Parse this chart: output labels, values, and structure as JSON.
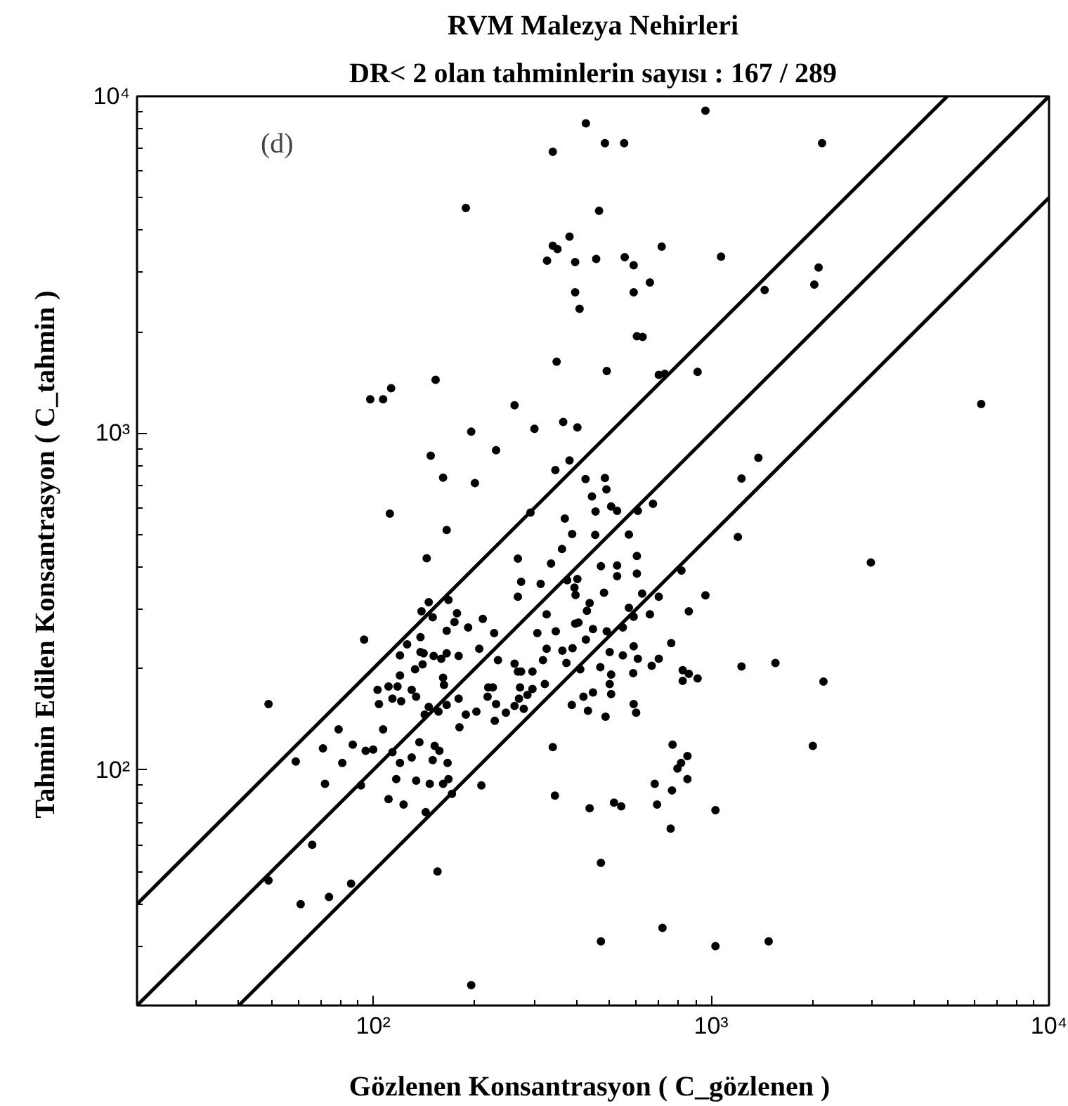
{
  "chart_data": {
    "type": "scatter",
    "title": "RVM Malezya Nehirleri",
    "subtitle": "DR< 2 olan tahminlerin sayısı : 167 / 289",
    "xlabel": "Gözlenen Konsantrasyon  ( C_gözlenen )",
    "ylabel": "Tahmin Edilen Konsantrasyon  ( C_tahmin )",
    "annotations": [
      "(d)"
    ],
    "log": "xy",
    "xlim": [
      20,
      10000
    ],
    "ylim": [
      20,
      10000
    ],
    "xticks": [
      {
        "value": 100,
        "label": "10²"
      },
      {
        "value": 1000,
        "label": "10³"
      },
      {
        "value": 10000,
        "label": "10⁴"
      }
    ],
    "yticks": [
      {
        "value": 100,
        "label": "10²"
      },
      {
        "value": 1000,
        "label": "10³"
      },
      {
        "value": 10000,
        "label": "10⁴"
      }
    ],
    "grid": false,
    "line_style": "solid",
    "series": [
      {
        "marker": "circle",
        "color": "#000000",
        "x": [
          426,
          340,
          188,
          381,
          340,
          351,
          327,
          396,
          396,
          408,
          349,
          98,
          107,
          113,
          153,
          262,
          195,
          300,
          365,
          402,
          148,
          231,
          381,
          161,
          200,
          112,
          165,
          144,
          94,
          49,
          59,
          71,
          79,
          81,
          87,
          95,
          100,
          72,
          92,
          107,
          103,
          104,
          111,
          118,
          114,
          121,
          130,
          134,
          120,
          120,
          126,
          138,
          138,
          141,
          133,
          140,
          146,
          139,
          150,
          167,
          151,
          159,
          165,
          179,
          177,
          174,
          165,
          191,
          211,
          228,
          206,
          234,
          161,
          162,
          165,
          156,
          146,
          142,
          179,
          188,
          202,
          218,
          219,
          226,
          231,
          229,
          180,
          247,
          262,
          268,
          274,
          296,
          272,
          296,
          262,
          279,
          286,
          270,
          322,
          326,
          318,
          306,
          347,
          363,
          373,
          389,
          410,
          396,
          405,
          429,
          326,
          313,
          274,
          268,
          268,
          336,
          362,
          388,
          369,
          292,
          346,
          425,
          444,
          454,
          375,
          394,
          402,
          397,
          437,
          426,
          387,
          419,
          432,
          447,
          447,
          340,
          345,
          437,
          114,
          120,
          130,
          134,
          137,
          150,
          152,
          157,
          166,
          167,
          171,
          161,
          147,
          117,
          111,
          123,
          143,
          209,
          155,
          66,
          49,
          61,
          74,
          86,
          962,
          485,
          553,
          2130,
          466,
          457,
          555,
          590,
          714,
          1070,
          590,
          659,
          2080,
          2020,
          1440,
          603,
          627,
          491,
          700,
          729,
          912,
          6300,
          1380,
          1230,
          485,
          490,
          673,
          607,
          527,
          506,
          571,
          1200,
          455,
          472,
          527,
          603,
          527,
          603,
          817,
          2970,
          962,
          625,
          700,
          482,
          659,
          571,
          859,
          548,
          491,
          590,
          590,
          548,
          607,
          700,
          762,
          470,
          501,
          667,
          1230,
          1550,
          2150,
          824,
          859,
          824,
          912,
          588,
          506,
          501,
          506,
          590,
          600,
          487,
          769,
          2000,
          851,
          815,
          795,
          851,
          681,
          766,
          692,
          516,
          542,
          1030,
          759,
          472,
          718,
          1030,
          1480,
          472,
          195
        ],
        "values": [
          8310,
          6840,
          4660,
          3830,
          3600,
          3520,
          3250,
          3220,
          2620,
          2340,
          1630,
          1260,
          1260,
          1360,
          1440,
          1210,
          1010,
          1030,
          1080,
          1040,
          857,
          890,
          830,
          738,
          711,
          577,
          516,
          425,
          244,
          157,
          106,
          116,
          132,
          105,
          119,
          114,
          115,
          91,
          90,
          132,
          173,
          157,
          177,
          177,
          163,
          160,
          173,
          165,
          191,
          219,
          236,
          248,
          224,
          222,
          199,
          206,
          315,
          296,
          284,
          320,
          218,
          214,
          222,
          218,
          292,
          275,
          259,
          265,
          281,
          255,
          229,
          212,
          188,
          179,
          156,
          149,
          154,
          146,
          163,
          146,
          149,
          165,
          176,
          176,
          157,
          140,
          134,
          148,
          207,
          196,
          196,
          196,
          176,
          174,
          155,
          152,
          167,
          163,
          180,
          229,
          212,
          255,
          258,
          226,
          208,
          230,
          199,
          272,
          274,
          297,
          290,
          357,
          362,
          327,
          424,
          410,
          453,
          502,
          558,
          581,
          777,
          731,
          649,
          499,
          366,
          348,
          369,
          331,
          313,
          244,
          156,
          165,
          150,
          262,
          170,
          117,
          84,
          77,
          113,
          105,
          109,
          93,
          121,
          107,
          118,
          114,
          105,
          94,
          85,
          91,
          91,
          94,
          82,
          79,
          75,
          90,
          50,
          60,
          47,
          40,
          42,
          46,
          9060,
          7260,
          7260,
          7260,
          4570,
          3290,
          3330,
          3150,
          3580,
          3340,
          2620,
          2800,
          3100,
          2760,
          2660,
          1940,
          1930,
          1530,
          1490,
          1500,
          1520,
          1220,
          845,
          733,
          736,
          681,
          617,
          588,
          588,
          606,
          500,
          492,
          585,
          403,
          405,
          432,
          376,
          383,
          391,
          413,
          330,
          334,
          327,
          336,
          290,
          303,
          296,
          265,
          258,
          285,
          233,
          219,
          214,
          214,
          238,
          202,
          224,
          204,
          203,
          208,
          183,
          198,
          193,
          184,
          187,
          194,
          192,
          180,
          168,
          157,
          148,
          144,
          119,
          118,
          110,
          105,
          101,
          94,
          91,
          87,
          79,
          80,
          78,
          76,
          67,
          53,
          34,
          30,
          31,
          31,
          23
        ]
      },
      {
        "type": "line",
        "color": "#000000",
        "x": [
          20,
          5000
        ],
        "values": [
          40,
          10000
        ]
      },
      {
        "type": "line",
        "color": "#000000",
        "x": [
          20,
          10000
        ],
        "values": [
          20,
          10000
        ]
      },
      {
        "type": "line",
        "color": "#000000",
        "x": [
          40,
          10000
        ],
        "values": [
          20,
          5000
        ]
      }
    ]
  }
}
